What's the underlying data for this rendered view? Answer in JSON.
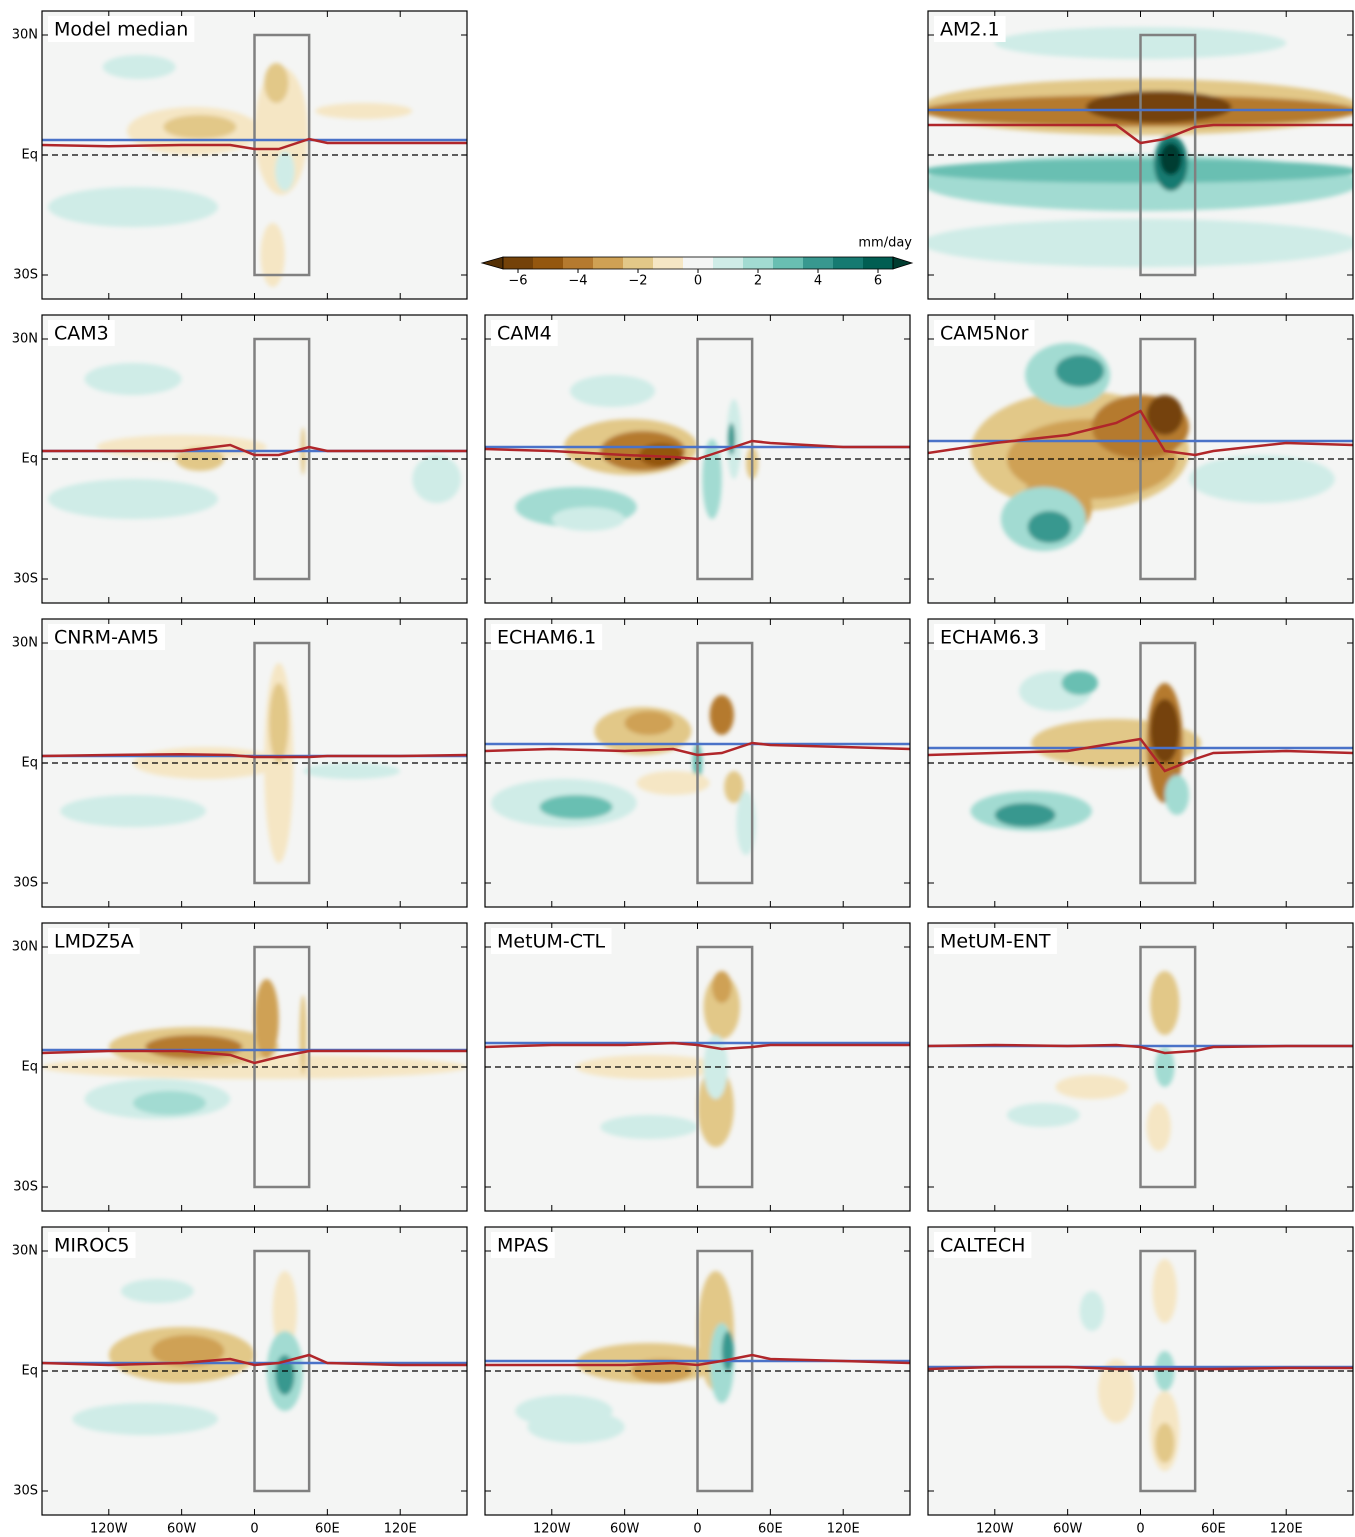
{
  "map": {
    "xlim": [
      -175,
      175
    ],
    "ylim": [
      -36,
      36
    ],
    "xticks": [
      {
        "value": -120,
        "label": "120W"
      },
      {
        "value": -60,
        "label": "60W"
      },
      0,
      {
        "value": 60,
        "label": "60E"
      },
      {
        "value": 120,
        "label": "120E"
      }
    ],
    "yticks": [
      {
        "value": 30,
        "label": "30N"
      },
      {
        "value": 0,
        "label": "Eq"
      },
      {
        "value": -30,
        "label": "30S"
      }
    ],
    "box": {
      "lon": [
        0,
        45
      ],
      "lat": [
        -30,
        30
      ]
    },
    "blue_color": "#4a72c8",
    "red_color": "#b0262a",
    "box_color": "#808080",
    "red_line_lon": [
      -175,
      -120,
      -60,
      -20,
      0,
      20,
      45,
      60,
      120,
      175
    ]
  },
  "colorbar": {
    "unit": "mm/day",
    "ticks": [
      {
        "value": -6,
        "label": "−6"
      },
      {
        "value": -4,
        "label": "−4"
      },
      {
        "value": -2,
        "label": "−2"
      },
      0,
      2,
      4,
      6
    ],
    "levels": [
      -7,
      -6,
      -5,
      -4,
      -3,
      -2,
      -1,
      0,
      1,
      2,
      3,
      4,
      5,
      6,
      7
    ],
    "colors": [
      "#543005",
      "#744209",
      "#94570f",
      "#b57a2f",
      "#cfa154",
      "#e2c888",
      "#f5e6c4",
      "#f4f5f4",
      "#cfece7",
      "#a2dbd2",
      "#69bfb2",
      "#38988f",
      "#167a71",
      "#015e52",
      "#003c30"
    ]
  },
  "panels": [
    {
      "title": "Model median",
      "blue_line_lat": 3.75,
      "red_line": [
        2.5,
        2.2,
        2.5,
        2.5,
        1.5,
        1.5,
        4,
        3,
        3,
        3
      ],
      "blobs": [
        [
          -50,
          6,
          55,
          6,
          -1
        ],
        [
          -45,
          7,
          30,
          3,
          -2
        ],
        [
          22,
          6,
          22,
          16,
          -1
        ],
        [
          18,
          18,
          10,
          5,
          -2
        ],
        [
          -100,
          -13,
          70,
          5,
          1
        ],
        [
          -95,
          22,
          30,
          3,
          1
        ],
        [
          25,
          -4,
          8,
          5,
          1
        ],
        [
          90,
          11,
          40,
          2,
          -1
        ],
        [
          15,
          -25,
          10,
          8,
          -1
        ]
      ]
    },
    {
      "title": "AM2.1",
      "blue_line_lat": 11.25,
      "red_line": [
        7.5,
        7.5,
        7.5,
        7.5,
        3,
        4,
        7,
        7.5,
        7.5,
        7.5
      ],
      "blobs": [
        [
          0,
          12,
          180,
          7,
          -2
        ],
        [
          0,
          11,
          180,
          4,
          -4
        ],
        [
          15,
          12,
          60,
          4,
          -6
        ],
        [
          0,
          -7,
          180,
          7,
          2
        ],
        [
          0,
          -4,
          180,
          3,
          3
        ],
        [
          25,
          -2,
          14,
          7,
          5
        ],
        [
          25,
          -1,
          9,
          4,
          7
        ],
        [
          0,
          -22,
          180,
          6,
          1
        ],
        [
          0,
          28,
          120,
          4,
          1
        ]
      ]
    },
    {
      "title": "CAM3",
      "blue_line_lat": 2,
      "red_line": [
        2,
        2,
        2,
        3.5,
        1,
        1,
        3,
        2,
        2,
        2
      ],
      "blobs": [
        [
          -60,
          3,
          70,
          3,
          -1
        ],
        [
          -45,
          0,
          20,
          3,
          -2
        ],
        [
          -100,
          -10,
          70,
          5,
          1
        ],
        [
          -100,
          20,
          40,
          4,
          1
        ],
        [
          40,
          2,
          2,
          6,
          -2
        ],
        [
          150,
          -5,
          20,
          6,
          1
        ]
      ]
    },
    {
      "title": "CAM4",
      "blue_line_lat": 3,
      "red_line": [
        2.5,
        2,
        1,
        0.5,
        0,
        2,
        4.5,
        4,
        3,
        3
      ],
      "blobs": [
        [
          -55,
          3,
          55,
          7,
          -2
        ],
        [
          -45,
          2,
          35,
          5,
          -4
        ],
        [
          -30,
          1,
          18,
          3,
          -5
        ],
        [
          30,
          5,
          6,
          10,
          1
        ],
        [
          28,
          5,
          3,
          4,
          4
        ],
        [
          12,
          -5,
          8,
          10,
          2
        ],
        [
          45,
          -1,
          5,
          4,
          -2
        ],
        [
          -100,
          -12,
          50,
          5,
          2
        ],
        [
          -70,
          17,
          35,
          4,
          1
        ],
        [
          -90,
          -15,
          30,
          3,
          1
        ]
      ]
    },
    {
      "title": "CAM5Nor",
      "blue_line_lat": 4.5,
      "red_line": [
        1.5,
        4,
        6,
        9,
        12,
        2,
        1,
        2,
        4,
        3.5
      ],
      "blobs": [
        [
          -50,
          2,
          90,
          15,
          -2
        ],
        [
          -40,
          0,
          70,
          10,
          -3
        ],
        [
          0,
          8,
          40,
          8,
          -4
        ],
        [
          20,
          11,
          15,
          5,
          -6
        ],
        [
          -70,
          -12,
          30,
          8,
          -3
        ],
        [
          -60,
          21,
          35,
          8,
          2
        ],
        [
          -50,
          22,
          20,
          4,
          4
        ],
        [
          -80,
          -15,
          35,
          8,
          2
        ],
        [
          -75,
          -17,
          18,
          4,
          4
        ],
        [
          100,
          -5,
          60,
          6,
          1
        ]
      ]
    },
    {
      "title": "CNRM-AM5",
      "blue_line_lat": 1.75,
      "red_line": [
        1.75,
        2,
        2.2,
        2,
        1.5,
        1.5,
        1.5,
        1.75,
        1.75,
        2
      ],
      "blobs": [
        [
          -40,
          0,
          60,
          4,
          -1
        ],
        [
          20,
          0,
          12,
          25,
          -1
        ],
        [
          20,
          10,
          8,
          10,
          -2
        ],
        [
          -100,
          -12,
          60,
          4,
          1
        ],
        [
          80,
          -2,
          40,
          2,
          1
        ]
      ]
    },
    {
      "title": "ECHAM6.1",
      "blue_line_lat": 4.75,
      "red_line": [
        3,
        3.5,
        3,
        3.5,
        2,
        2.5,
        5,
        4.5,
        4,
        3.5
      ],
      "blobs": [
        [
          -45,
          8,
          40,
          6,
          -2
        ],
        [
          -40,
          10,
          20,
          3,
          -3
        ],
        [
          20,
          12,
          10,
          5,
          -4
        ],
        [
          -110,
          -10,
          60,
          6,
          1
        ],
        [
          -100,
          -11,
          30,
          3,
          3
        ],
        [
          30,
          -6,
          8,
          4,
          -2
        ],
        [
          0,
          0,
          4,
          5,
          3
        ],
        [
          40,
          -15,
          8,
          8,
          1
        ],
        [
          -20,
          -5,
          30,
          3,
          -1
        ]
      ]
    },
    {
      "title": "ECHAM6.3",
      "blue_line_lat": 3.75,
      "red_line": [
        2,
        2.5,
        3,
        5,
        6,
        -2,
        1,
        2.5,
        3,
        2.5
      ],
      "blobs": [
        [
          -20,
          5,
          70,
          6,
          -2
        ],
        [
          20,
          5,
          15,
          15,
          -4
        ],
        [
          20,
          8,
          12,
          8,
          -6
        ],
        [
          -90,
          -12,
          50,
          5,
          2
        ],
        [
          -95,
          -13,
          25,
          3,
          4
        ],
        [
          -70,
          18,
          30,
          5,
          1
        ],
        [
          -50,
          20,
          15,
          3,
          3
        ],
        [
          30,
          -8,
          10,
          5,
          2
        ]
      ]
    },
    {
      "title": "LMDZ5A",
      "blue_line_lat": 4.25,
      "red_line": [
        3.5,
        4,
        4,
        3,
        1,
        2.5,
        4,
        4,
        4,
        4
      ],
      "blobs": [
        [
          0,
          0,
          175,
          3,
          -1
        ],
        [
          -50,
          5,
          70,
          5,
          -2
        ],
        [
          -50,
          5,
          40,
          3,
          -4
        ],
        [
          10,
          12,
          10,
          10,
          -3
        ],
        [
          40,
          8,
          3,
          10,
          -2
        ],
        [
          -80,
          -8,
          60,
          5,
          1
        ],
        [
          -70,
          -9,
          30,
          3,
          2
        ]
      ]
    },
    {
      "title": "MetUM-CTL",
      "blue_line_lat": 6,
      "red_line": [
        5,
        5.5,
        5.5,
        6,
        5.5,
        4.5,
        5,
        5.5,
        5.5,
        5.5
      ],
      "blobs": [
        [
          -40,
          0,
          60,
          3,
          -1
        ],
        [
          -40,
          -15,
          40,
          3,
          1
        ],
        [
          20,
          15,
          15,
          8,
          -2
        ],
        [
          20,
          20,
          8,
          4,
          -3
        ],
        [
          15,
          -10,
          15,
          10,
          -2
        ],
        [
          15,
          0,
          10,
          8,
          1
        ]
      ]
    },
    {
      "title": "MetUM-ENT",
      "blue_line_lat": 5.25,
      "red_line": [
        5.25,
        5.5,
        5.25,
        5.5,
        5,
        3.5,
        4,
        5,
        5.25,
        5.25
      ],
      "blobs": [
        [
          -40,
          -5,
          30,
          3,
          -1
        ],
        [
          -80,
          -12,
          30,
          3,
          1
        ],
        [
          20,
          16,
          12,
          8,
          -2
        ],
        [
          20,
          0,
          8,
          5,
          2
        ],
        [
          15,
          -15,
          10,
          6,
          -1
        ]
      ]
    },
    {
      "title": "MIROC5",
      "blue_line_lat": 2,
      "red_line": [
        2,
        1.5,
        2,
        3,
        1.5,
        2,
        4,
        2,
        1.5,
        1.5
      ],
      "blobs": [
        [
          -90,
          -12,
          60,
          4,
          1
        ],
        [
          -80,
          20,
          30,
          3,
          1
        ],
        [
          -60,
          4,
          60,
          7,
          -2
        ],
        [
          -55,
          5,
          30,
          4,
          -3
        ],
        [
          25,
          15,
          10,
          10,
          -1
        ],
        [
          25,
          0,
          15,
          10,
          2
        ],
        [
          25,
          -1,
          8,
          5,
          4
        ]
      ]
    },
    {
      "title": "MPAS",
      "blue_line_lat": 2.5,
      "red_line": [
        1.5,
        1.5,
        1.5,
        2,
        1.5,
        2.5,
        4,
        3,
        2.5,
        2
      ],
      "blobs": [
        [
          -100,
          -14,
          40,
          4,
          1
        ],
        [
          -110,
          -10,
          40,
          4,
          1
        ],
        [
          -40,
          2,
          60,
          5,
          -2
        ],
        [
          -30,
          0,
          25,
          3,
          -3
        ],
        [
          15,
          10,
          15,
          15,
          -2
        ],
        [
          20,
          2,
          10,
          10,
          2
        ],
        [
          25,
          5,
          5,
          5,
          4
        ]
      ]
    },
    {
      "title": "CALTECH",
      "blue_line_lat": 1,
      "red_line": [
        0.5,
        1,
        1,
        0.5,
        0.5,
        0.5,
        0.5,
        0.5,
        0.75,
        0.75
      ],
      "blobs": [
        [
          -20,
          -5,
          15,
          8,
          -1
        ],
        [
          -40,
          15,
          10,
          5,
          1
        ],
        [
          20,
          20,
          10,
          8,
          -1
        ],
        [
          20,
          -15,
          12,
          10,
          -1
        ],
        [
          20,
          -18,
          8,
          5,
          -2
        ],
        [
          20,
          0,
          8,
          5,
          2
        ]
      ]
    }
  ]
}
